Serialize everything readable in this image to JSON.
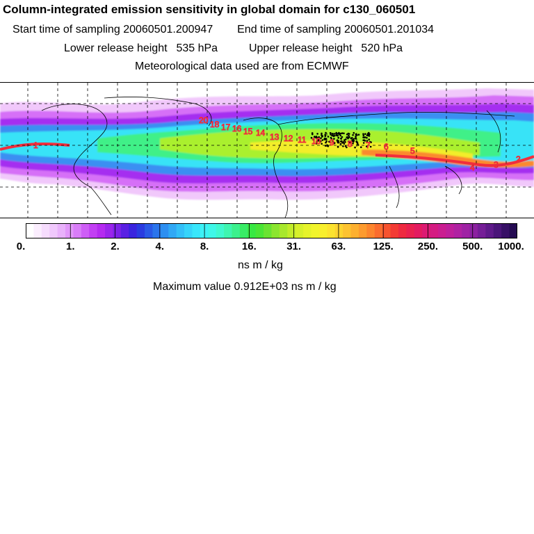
{
  "title": "Column-integrated emission sensitivity in global domain for c130_060501",
  "header": {
    "start_label": "Start time of sampling",
    "start_value": "20060501.200947",
    "end_label": "End time of sampling",
    "end_value": "20060501.201034",
    "lower_label": "Lower release height",
    "lower_value": "535 hPa",
    "upper_label": "Upper release height",
    "upper_value": "520 hPa",
    "met_label": "Meteorological data used are from ECMWF"
  },
  "colorbar": {
    "tick_labels": [
      "0.",
      "1.",
      "2.",
      "4.",
      "8.",
      "16.",
      "31.",
      "63.",
      "125.",
      "250.",
      "500.",
      "1000."
    ],
    "colors": [
      "#ffffff",
      "#fbeefe",
      "#f6dcfd",
      "#f0c8fc",
      "#e9b2fb",
      "#e298fa",
      "#d97df8",
      "#ce5ef6",
      "#c23ff3",
      "#b52bf0",
      "#9b25ec",
      "#7c22e8",
      "#5a20e3",
      "#3a24de",
      "#2a3be0",
      "#2a59e6",
      "#2b75ec",
      "#2d8ff1",
      "#30a8f5",
      "#33bff8",
      "#36d4fa",
      "#39e6fb",
      "#3cf2f6",
      "#3ff7e8",
      "#40f8cf",
      "#3ff5b0",
      "#3cf18d",
      "#39ec66",
      "#38e843",
      "#4ae536",
      "#6ae332",
      "#8be52f",
      "#a8e82d",
      "#c2ec2b",
      "#d7f02b",
      "#e6f32b",
      "#f1f42c",
      "#f8ef2d",
      "#fce32f",
      "#fdd430",
      "#fdc331",
      "#fdb030",
      "#fd9b2f",
      "#fc852e",
      "#fa6c2e",
      "#f7532f",
      "#f33b34",
      "#ee2a40",
      "#e9214f",
      "#e31b60",
      "#dc1a72",
      "#d41b82",
      "#ca1d90",
      "#bf1f9b",
      "#b021a2",
      "#9f22a4",
      "#8b21a0",
      "#751e97",
      "#5f1a8a",
      "#4a1579",
      "#371066",
      "#250b52"
    ]
  },
  "unit": "ns m / kg",
  "max": {
    "label": "Maximum value",
    "value": "0.912E+03 ns m / kg"
  },
  "map": {
    "contour_labels": [
      "20",
      "18",
      "17",
      "16",
      "15",
      "14",
      "13",
      "12",
      "11",
      "10",
      "9",
      "8",
      "7",
      "6",
      "5",
      "4",
      "3",
      "2",
      "1"
    ],
    "colors": {
      "light_violet": "#f1c8fb",
      "violet": "#d66ff7",
      "purple": "#a52ef0",
      "blue": "#3b8ff2",
      "cyan": "#37e3f7",
      "green": "#3ff088",
      "lime": "#aaf02e",
      "yellow": "#f2ee2c",
      "orange": "#fb8a2e",
      "red": "#f12e3c"
    }
  }
}
